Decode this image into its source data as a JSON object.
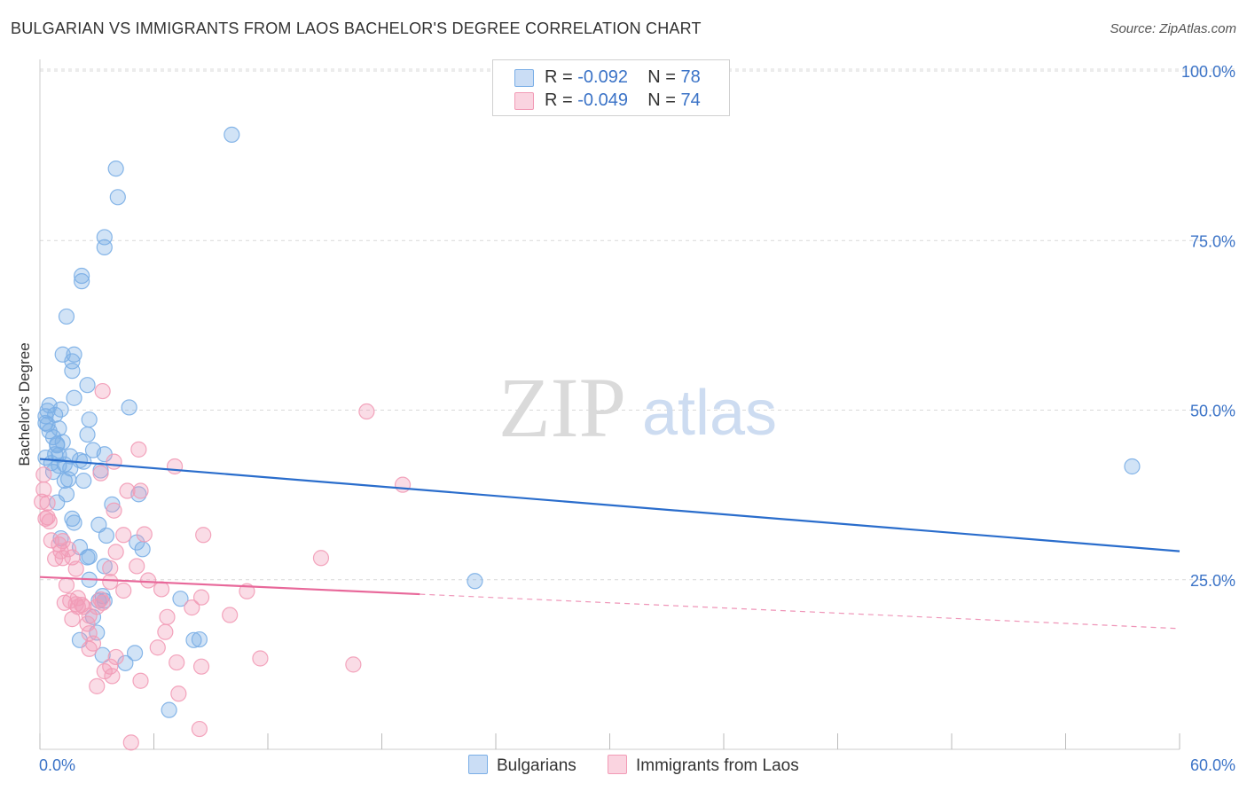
{
  "title": "BULGARIAN VS IMMIGRANTS FROM LAOS BACHELOR'S DEGREE CORRELATION CHART",
  "source": "Source: ZipAtlas.com",
  "watermark": {
    "zip": "ZIP",
    "atlas": "atlas"
  },
  "legend": {
    "rows": [
      {
        "r_label": "R = ",
        "r_value": "-0.092",
        "n_label": "N = ",
        "n_value": "78",
        "color": "#a7c7ef"
      },
      {
        "r_label": "R = ",
        "r_value": "-0.049",
        "n_label": "N = ",
        "n_value": "74",
        "color": "#f6b8cb"
      }
    ]
  },
  "bottom_legend": [
    {
      "label": "Bulgarians",
      "color": "#a7c7ef"
    },
    {
      "label": "Immigrants from Laos",
      "color": "#f6b8cb"
    }
  ],
  "chart_data": {
    "type": "scatter",
    "title": "BULGARIAN VS IMMIGRANTS FROM LAOS BACHELOR'S DEGREE CORRELATION CHART",
    "xlabel": "",
    "ylabel": "Bachelor's Degree",
    "xlim": [
      0,
      60
    ],
    "ylim": [
      0,
      105
    ],
    "x_tick_labels": [
      "0.0%",
      "60.0%"
    ],
    "y_ticks": [
      25,
      50,
      75,
      100
    ],
    "y_tick_labels": [
      "25.0%",
      "50.0%",
      "75.0%",
      "100.0%"
    ],
    "grid": true,
    "series": [
      {
        "name": "Bulgarians",
        "color": "#7aaee6",
        "line_color": "#2a6dcc",
        "trend": {
          "x": [
            0,
            60
          ],
          "y": [
            42.8,
            29.2
          ],
          "solid_until": 60
        },
        "points": [
          [
            10.1,
            90.6
          ],
          [
            4.0,
            85.6
          ],
          [
            4.1,
            81.4
          ],
          [
            3.4,
            75.5
          ],
          [
            3.4,
            74.0
          ],
          [
            2.2,
            69.8
          ],
          [
            2.2,
            69.0
          ],
          [
            1.4,
            63.8
          ],
          [
            1.2,
            58.2
          ],
          [
            1.8,
            58.2
          ],
          [
            1.7,
            57.2
          ],
          [
            1.7,
            55.8
          ],
          [
            2.5,
            53.7
          ],
          [
            1.8,
            51.8
          ],
          [
            0.5,
            50.7
          ],
          [
            0.4,
            49.9
          ],
          [
            0.8,
            49.3
          ],
          [
            1.1,
            50.1
          ],
          [
            4.7,
            50.4
          ],
          [
            0.3,
            49.1
          ],
          [
            0.3,
            48.1
          ],
          [
            2.6,
            48.6
          ],
          [
            1.0,
            47.3
          ],
          [
            2.5,
            46.4
          ],
          [
            0.5,
            46.9
          ],
          [
            0.7,
            46.0
          ],
          [
            1.2,
            45.3
          ],
          [
            0.9,
            45.0
          ],
          [
            0.8,
            43.5
          ],
          [
            1.6,
            43.2
          ],
          [
            2.8,
            44.1
          ],
          [
            0.3,
            43.0
          ],
          [
            1.0,
            43.4
          ],
          [
            2.1,
            42.6
          ],
          [
            2.3,
            42.4
          ],
          [
            3.4,
            43.5
          ],
          [
            1.0,
            41.8
          ],
          [
            1.6,
            41.4
          ],
          [
            3.2,
            41.1
          ],
          [
            0.7,
            40.9
          ],
          [
            1.3,
            39.6
          ],
          [
            1.5,
            39.8
          ],
          [
            2.3,
            39.6
          ],
          [
            57.5,
            41.7
          ],
          [
            5.2,
            37.6
          ],
          [
            3.8,
            36.1
          ],
          [
            0.9,
            36.4
          ],
          [
            1.7,
            34.0
          ],
          [
            1.8,
            33.4
          ],
          [
            3.1,
            33.1
          ],
          [
            1.1,
            31.1
          ],
          [
            3.5,
            31.5
          ],
          [
            5.1,
            30.5
          ],
          [
            5.4,
            29.5
          ],
          [
            2.1,
            29.8
          ],
          [
            2.5,
            28.3
          ],
          [
            2.6,
            28.4
          ],
          [
            3.4,
            27.0
          ],
          [
            2.6,
            25.0
          ],
          [
            22.9,
            24.8
          ],
          [
            3.3,
            22.6
          ],
          [
            3.4,
            21.9
          ],
          [
            7.4,
            22.2
          ],
          [
            3.1,
            21.9
          ],
          [
            2.8,
            19.5
          ],
          [
            3.0,
            17.2
          ],
          [
            2.1,
            16.1
          ],
          [
            8.1,
            16.1
          ],
          [
            8.4,
            16.2
          ],
          [
            5.0,
            14.2
          ],
          [
            3.3,
            13.9
          ],
          [
            4.5,
            12.7
          ],
          [
            6.8,
            5.8
          ],
          [
            0.6,
            42.2
          ],
          [
            1.3,
            42.0
          ],
          [
            0.4,
            47.9
          ],
          [
            0.9,
            44.8
          ],
          [
            1.4,
            37.6
          ]
        ]
      },
      {
        "name": "Immigrants from Laos",
        "color": "#f29bb6",
        "line_color": "#e8689a",
        "trend": {
          "x": [
            0,
            60
          ],
          "y": [
            25.4,
            17.8
          ],
          "solid_until": 20
        },
        "points": [
          [
            17.2,
            49.8
          ],
          [
            3.3,
            52.8
          ],
          [
            5.2,
            44.2
          ],
          [
            3.9,
            42.4
          ],
          [
            7.1,
            41.7
          ],
          [
            3.2,
            40.7
          ],
          [
            19.1,
            39.0
          ],
          [
            0.2,
            38.3
          ],
          [
            4.6,
            38.1
          ],
          [
            5.3,
            38.1
          ],
          [
            0.4,
            36.3
          ],
          [
            0.1,
            36.5
          ],
          [
            3.9,
            35.2
          ],
          [
            0.4,
            34.2
          ],
          [
            0.5,
            33.6
          ],
          [
            1.2,
            30.7
          ],
          [
            5.5,
            31.7
          ],
          [
            8.6,
            31.6
          ],
          [
            4.4,
            31.6
          ],
          [
            0.6,
            30.8
          ],
          [
            1.0,
            30.2
          ],
          [
            1.1,
            29.2
          ],
          [
            4.0,
            29.1
          ],
          [
            0.8,
            28.1
          ],
          [
            1.2,
            28.2
          ],
          [
            1.7,
            28.3
          ],
          [
            14.8,
            28.2
          ],
          [
            3.7,
            26.7
          ],
          [
            5.1,
            27.0
          ],
          [
            1.9,
            26.6
          ],
          [
            3.7,
            24.7
          ],
          [
            5.7,
            24.9
          ],
          [
            1.4,
            24.2
          ],
          [
            6.4,
            23.6
          ],
          [
            4.4,
            23.4
          ],
          [
            10.9,
            23.3
          ],
          [
            2.0,
            22.3
          ],
          [
            3.2,
            22.1
          ],
          [
            1.6,
            21.9
          ],
          [
            3.3,
            21.6
          ],
          [
            1.3,
            21.6
          ],
          [
            8.5,
            22.4
          ],
          [
            1.9,
            21.4
          ],
          [
            2.2,
            21.3
          ],
          [
            2.0,
            21.0
          ],
          [
            2.3,
            21.0
          ],
          [
            3.0,
            21.0
          ],
          [
            8.0,
            20.9
          ],
          [
            6.7,
            19.5
          ],
          [
            10.0,
            19.8
          ],
          [
            2.6,
            19.7
          ],
          [
            1.7,
            19.2
          ],
          [
            2.5,
            18.5
          ],
          [
            6.6,
            17.3
          ],
          [
            2.6,
            17.1
          ],
          [
            2.8,
            15.6
          ],
          [
            6.2,
            15.0
          ],
          [
            2.6,
            14.8
          ],
          [
            4.0,
            13.6
          ],
          [
            11.6,
            13.4
          ],
          [
            7.2,
            12.8
          ],
          [
            16.5,
            12.5
          ],
          [
            8.5,
            12.2
          ],
          [
            3.7,
            12.2
          ],
          [
            3.4,
            11.5
          ],
          [
            3.8,
            10.8
          ],
          [
            5.3,
            10.1
          ],
          [
            3.0,
            9.3
          ],
          [
            7.3,
            8.2
          ],
          [
            4.8,
            1.0
          ],
          [
            8.4,
            3.0
          ],
          [
            0.2,
            40.5
          ],
          [
            0.3,
            34.0
          ],
          [
            1.5,
            29.5
          ]
        ]
      }
    ]
  }
}
